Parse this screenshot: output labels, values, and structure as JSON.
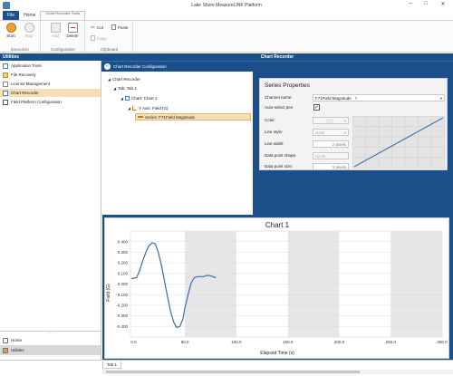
{
  "window": {
    "title": "Lake Shore MeasureLINK Platform",
    "contextual_tab": "Chart Recorder Tools",
    "controls": [
      "–",
      "□",
      "✕"
    ]
  },
  "ribbon": {
    "tabs": [
      {
        "label": "File"
      },
      {
        "label": "Home"
      },
      {
        "label": "Chart Recorder"
      }
    ],
    "groups": {
      "execution": {
        "label": "Execution",
        "start": "Start",
        "stop": "Stop"
      },
      "configuration": {
        "label": "Configuration",
        "add": "Add",
        "delete": "Delete"
      },
      "clipboard": {
        "label": "Clipboard",
        "cut": "Cut",
        "paste": "Paste",
        "copy": "Copy"
      }
    }
  },
  "sidebar": {
    "header": "Utilities",
    "items": [
      {
        "label": "Application Tools"
      },
      {
        "label": "File Recovery"
      },
      {
        "label": "License Management"
      },
      {
        "label": "Chart Recorder"
      },
      {
        "label": "Field Platform Configuration"
      }
    ],
    "bottom": [
      {
        "label": "Home"
      },
      {
        "label": "Utilities"
      }
    ]
  },
  "main": {
    "header": "Chart Recorder",
    "config_label": "Chart Recorder Configuration",
    "tree": {
      "root": "Chart Recorder",
      "tab": "Tab: Tab 1",
      "chart": "Chart:  Chart 1",
      "axis": "Y Axis:  Field (G)",
      "series": "Series:  F71Field Magnitude"
    }
  },
  "properties": {
    "title": "Series Properties",
    "channel_name_label": "Channel name:",
    "channel_name_value": "F71Field Magnitude",
    "channel_name_suffix": "F",
    "auto_select_label": "Auto-select pen",
    "auto_select_checked": "✓",
    "color_label": "Color:",
    "line_style_label": "Line style:",
    "line_style_value": "Solid",
    "line_width_label": "Line width:",
    "line_width_value": "2 pixels",
    "shape_label": "Data point shape:",
    "shape_value": "Circle",
    "size_label": "Data point size:",
    "size_value": "3 pixels"
  },
  "status": {
    "tab": "Tab 1"
  },
  "colors": {
    "accent": "#1a4f8a",
    "selected": "#f8deb6",
    "series": "#3b6fa6"
  },
  "chart_data": {
    "type": "line",
    "title": "Chart 1",
    "xlabel": "Elapsed Time (s)",
    "ylabel": "Field (G)",
    "xlim": [
      -3,
      300
    ],
    "ylim": [
      -0.5,
      0.5
    ],
    "x_ticks": [
      0,
      50,
      100,
      150,
      200,
      250,
      300
    ],
    "x_tick_labels": [
      "0.0",
      "50.0",
      "100.0",
      "150.0",
      "200.0",
      "250.0",
      "300.0"
    ],
    "y_ticks": [
      0.4,
      0.3,
      0.2,
      0.1,
      0.0,
      -0.1,
      -0.2,
      -0.3,
      -0.4
    ],
    "y_tick_labels": [
      "0.400",
      "0.300",
      "0.200",
      "0.100",
      "0.000",
      "-0.100",
      "-0.200",
      "-0.300",
      "-0.400"
    ],
    "grid": "alternating vertical bands",
    "series": [
      {
        "x": [
          -2,
          3,
          6,
          9,
          12,
          15,
          18,
          21,
          24,
          27,
          30,
          33,
          36,
          39,
          42,
          45,
          48,
          50,
          53,
          56,
          59,
          62,
          65,
          68,
          71,
          74,
          77,
          80
        ],
        "y": [
          0.05,
          0.06,
          0.13,
          0.22,
          0.3,
          0.36,
          0.39,
          0.38,
          0.3,
          0.18,
          0.03,
          -0.12,
          -0.26,
          -0.36,
          -0.41,
          -0.4,
          -0.33,
          -0.22,
          -0.1,
          0.01,
          0.06,
          0.07,
          0.07,
          0.07,
          0.08,
          0.08,
          0.07,
          0.06
        ]
      }
    ]
  }
}
